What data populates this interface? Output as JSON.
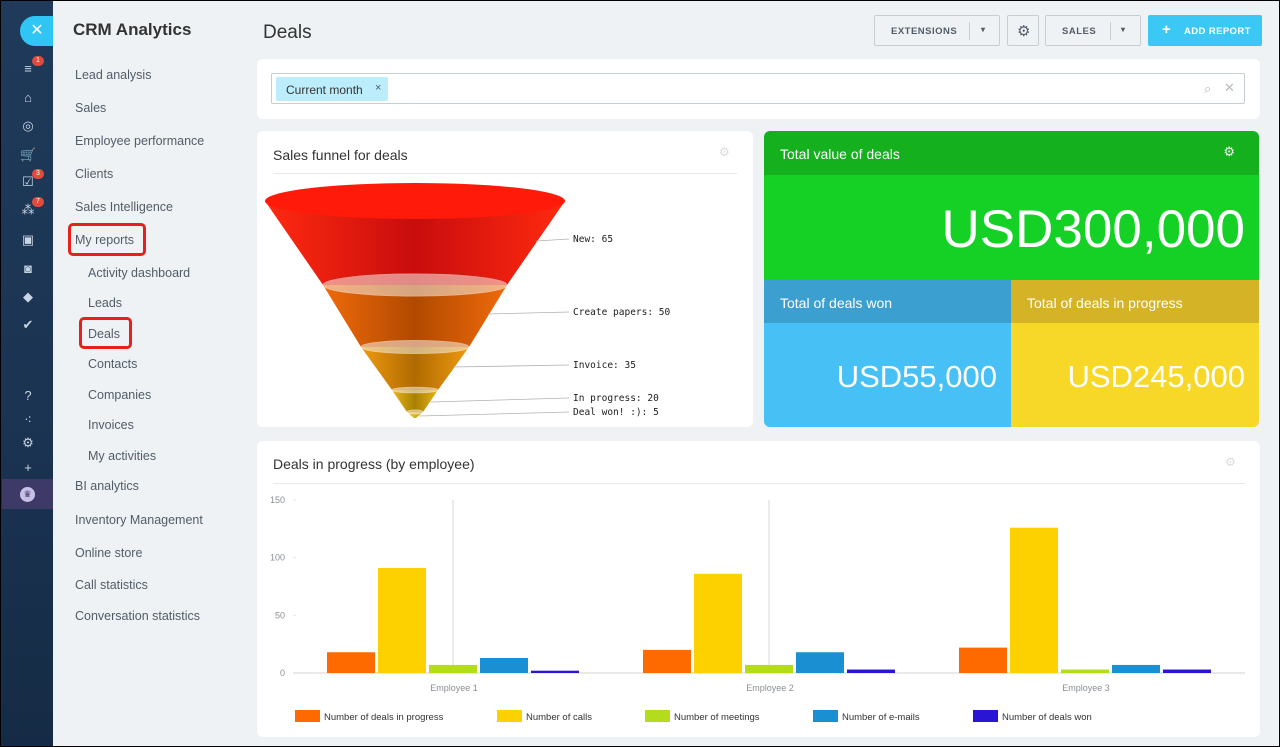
{
  "app": {
    "title": "CRM Analytics",
    "close_glyph": "✕"
  },
  "rail": {
    "icons": [
      {
        "name": "filter-icon",
        "glyph": "≡",
        "badge": "1"
      },
      {
        "name": "bank-icon",
        "glyph": "⌂",
        "badge": ""
      },
      {
        "name": "target-icon",
        "glyph": "◎",
        "badge": ""
      },
      {
        "name": "cart-icon",
        "glyph": "🛒",
        "badge": ""
      },
      {
        "name": "tasks-icon",
        "glyph": "☑",
        "badge": "3"
      },
      {
        "name": "workflow-icon",
        "glyph": "⁂",
        "badge": "7"
      },
      {
        "name": "contact-card-icon",
        "glyph": "▣",
        "badge": ""
      },
      {
        "name": "robot-icon",
        "glyph": "◙",
        "badge": ""
      },
      {
        "name": "box-icon",
        "glyph": "◆",
        "badge": ""
      },
      {
        "name": "check-circle-icon",
        "glyph": "✔",
        "badge": ""
      },
      {
        "name": "help-icon",
        "glyph": "?",
        "badge": ""
      },
      {
        "name": "structure-icon",
        "glyph": "⁖",
        "badge": ""
      },
      {
        "name": "settings-icon",
        "glyph": "⚙",
        "badge": ""
      },
      {
        "name": "add-icon",
        "glyph": "+",
        "badge": ""
      }
    ]
  },
  "menu": {
    "items": [
      "Lead analysis",
      "Sales",
      "Employee performance",
      "Clients",
      "Sales Intelligence",
      "My reports"
    ],
    "sub_items": [
      "Activity dashboard",
      "Leads",
      "Deals",
      "Contacts",
      "Companies",
      "Invoices",
      "My activities"
    ],
    "items_after": [
      "BI analytics",
      "Inventory Management",
      "Online store",
      "Call statistics",
      "Conversation statistics"
    ]
  },
  "header": {
    "title": "Deals",
    "extensions_label": "EXTENSIONS",
    "sales_label": "SALES",
    "add_report_label": "ADD REPORT",
    "gear_glyph": "⚙",
    "caret_glyph": "▾",
    "plus_glyph": "+"
  },
  "filter": {
    "chip_label": "Current month",
    "chip_close": "×",
    "search_glyph": "⌕",
    "clear_glyph": "✕"
  },
  "funnel": {
    "title": "Sales funnel for deals",
    "stages": [
      {
        "label": "New: 65",
        "value": 65
      },
      {
        "label": "Create papers: 50",
        "value": 50
      },
      {
        "label": "Invoice: 35",
        "value": 35
      },
      {
        "label": "In progress: 20",
        "value": 20
      },
      {
        "label": "Deal won! :): 5",
        "value": 5
      }
    ]
  },
  "totals": {
    "total_value_title": "Total value of deals",
    "total_value": "USD300,000",
    "won_title": "Total of deals won",
    "won_value": "USD55,000",
    "in_progress_title": "Total of deals in progress",
    "in_progress_value": "USD245,000",
    "colors": {
      "total": "#15d126",
      "total_head": "#14b01d",
      "won": "#47c0f5",
      "won_head": "#3b9fd0",
      "progress": "#f7d828",
      "progress_head": "#d4b327"
    }
  },
  "bar_chart_title": "Deals in progress (by employee)",
  "chart_data": {
    "type": "bar",
    "title": "Deals in progress (by employee)",
    "categories": [
      "Employee 1",
      "Employee 2",
      "Employee 3"
    ],
    "ylim": [
      0,
      150
    ],
    "yticks": [
      0,
      50,
      100,
      150
    ],
    "legend_position": "bottom",
    "series": [
      {
        "name": "Number of deals in progress",
        "color": "#ff6a00",
        "values": [
          18,
          20,
          22
        ]
      },
      {
        "name": "Number of calls",
        "color": "#fdd000",
        "values": [
          91,
          86,
          126
        ]
      },
      {
        "name": "Number of meetings",
        "color": "#b2dc1c",
        "values": [
          7,
          7,
          3
        ]
      },
      {
        "name": "Number of e-mails",
        "color": "#1a8fd2",
        "values": [
          13,
          18,
          7
        ]
      },
      {
        "name": "Number of deals won",
        "color": "#2a15d4",
        "values": [
          2,
          3,
          3
        ]
      }
    ]
  }
}
